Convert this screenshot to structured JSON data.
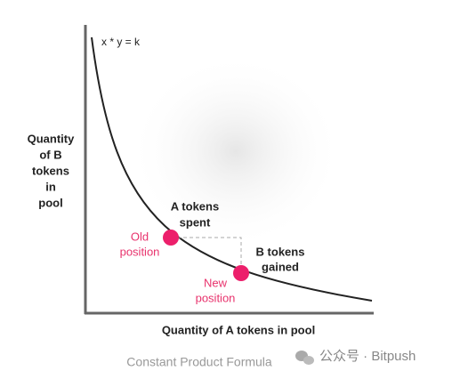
{
  "formula": "x * y = k",
  "y_axis_label": [
    "Quantity",
    "of B",
    "tokens",
    "in",
    "pool"
  ],
  "x_axis_label": "Quantity of A tokens in pool",
  "annotations": {
    "a_spent": [
      "A tokens",
      "spent"
    ],
    "old_position": [
      "Old",
      "position"
    ],
    "b_gained": [
      "B tokens",
      "gained"
    ],
    "new_position": [
      "New",
      "position"
    ]
  },
  "caption": "Constant Product Formula",
  "watermark": "公众号 · Bitpush"
}
